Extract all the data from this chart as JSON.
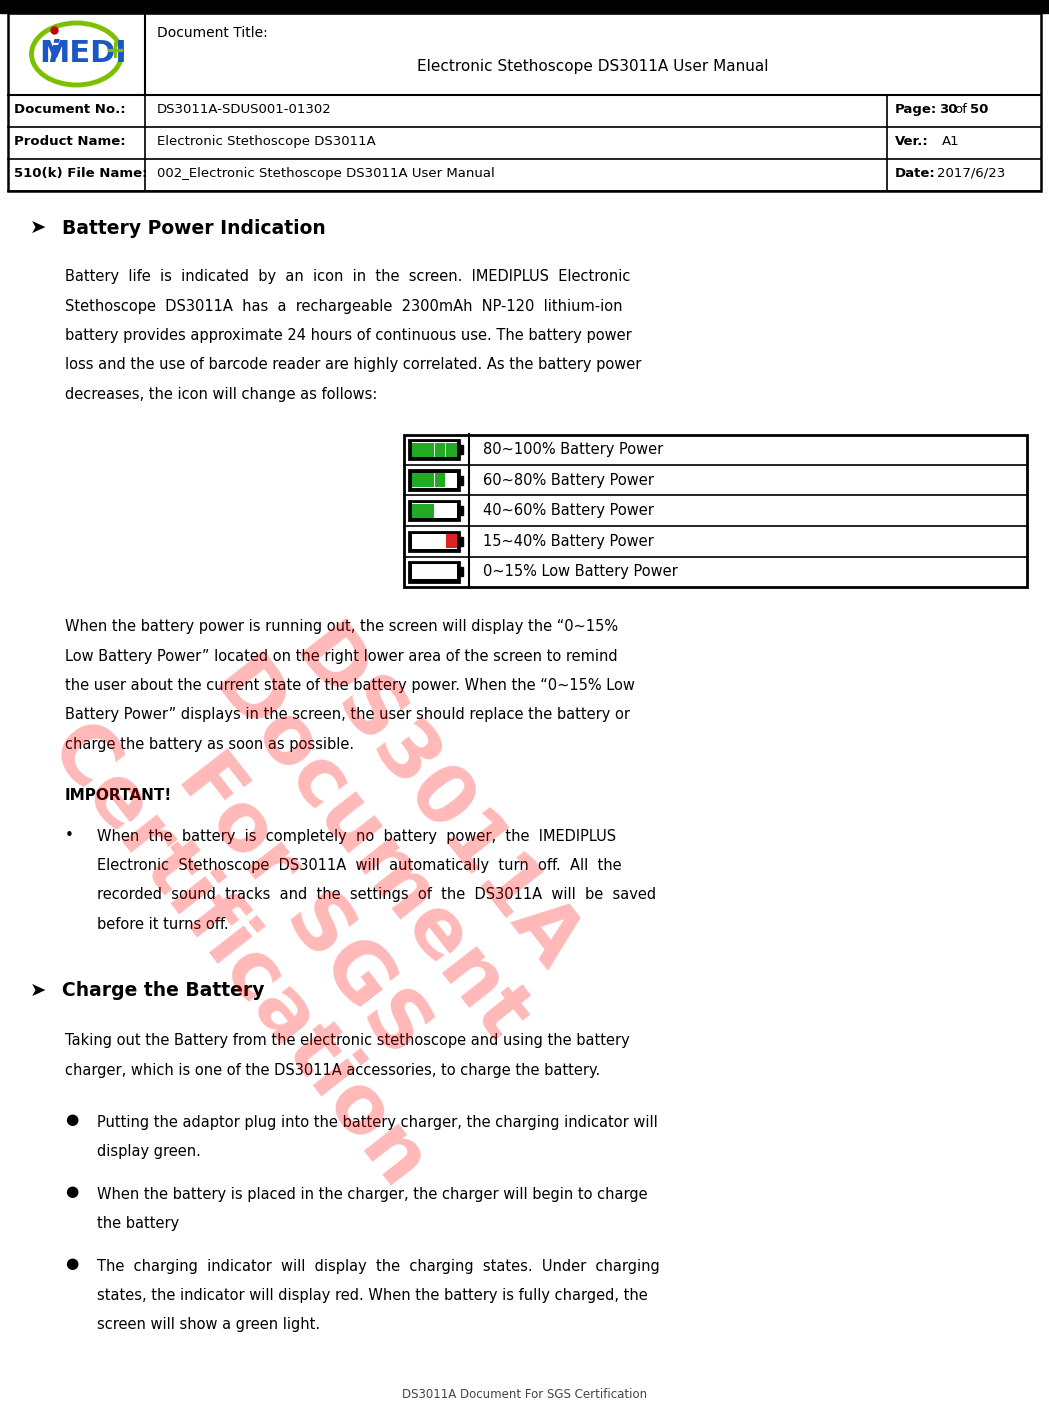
{
  "page_width": 10.49,
  "page_height": 14.19,
  "dpi": 100,
  "bg_color": "#ffffff",
  "header": {
    "doc_title_label": "Document Title:",
    "doc_title_value": "Electronic Stethoscope DS3011A User Manual",
    "doc_no_label": "Document No.:",
    "doc_no_value": "DS3011A-SDUS001-01302",
    "page_label": "Page:",
    "page_num": "30",
    "page_of": "of",
    "page_total": "50",
    "product_label": "Product Name:",
    "product_value": "Electronic Stethoscope DS3011A",
    "ver_label": "Ver.:",
    "ver_value": "A1",
    "file_label": "510(k) File Name:",
    "file_value": "002_Electronic Stethoscope DS3011A User Manual",
    "date_label": "Date:",
    "date_value": "2017/6/23"
  },
  "section1_title": "Battery Power Indication",
  "battery_rows": [
    {
      "label": "80~100% Battery Power",
      "green_bars": 4,
      "red_bars": 0
    },
    {
      "label": "60~80% Battery Power",
      "green_bars": 3,
      "red_bars": 0
    },
    {
      "label": "40~60% Battery Power",
      "green_bars": 2,
      "red_bars": 0
    },
    {
      "label": "15~40% Battery Power",
      "green_bars": 0,
      "red_bars": 1
    },
    {
      "label": "0~15% Low Battery Power",
      "green_bars": 0,
      "red_bars": 0
    }
  ],
  "section2_title": "Charge the Battery",
  "footer": "DS3011A Document For SGS Certification",
  "green_color": "#22aa22",
  "red_color": "#dd2222",
  "black_color": "#000000"
}
